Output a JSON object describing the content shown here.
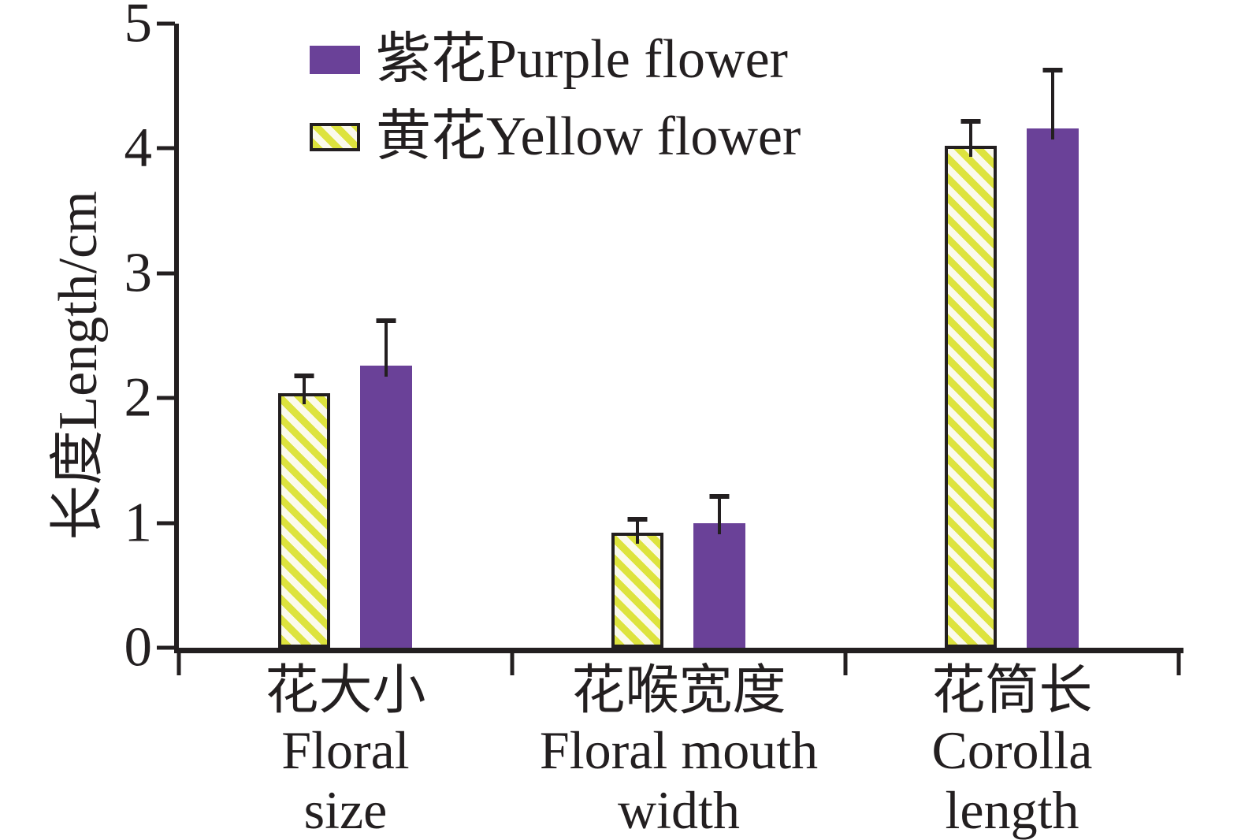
{
  "chart_data": {
    "type": "bar",
    "title": "",
    "xlabel": "",
    "ylabel": "长度Length/cm",
    "ylim": [
      0,
      5
    ],
    "yticks": [
      0,
      1,
      2,
      3,
      4,
      5
    ],
    "grid": false,
    "legend_position": "top-left-inside",
    "categories": [
      {
        "label_zh": "花大小",
        "label_en_lines": [
          "Floral",
          "size"
        ]
      },
      {
        "label_zh": "花喉宽度",
        "label_en_lines": [
          "Floral mouth",
          "width"
        ]
      },
      {
        "label_zh": "花筒长",
        "label_en_lines": [
          "Corolla",
          "length"
        ]
      }
    ],
    "series": [
      {
        "name": "黄花Yellow flower",
        "swatch": "yellow-hatched",
        "values": [
          2.04,
          0.92,
          4.02
        ],
        "errors_plus": [
          0.14,
          0.11,
          0.2
        ]
      },
      {
        "name": "紫花Purple flower",
        "swatch": "purple-solid",
        "values": [
          2.26,
          1.0,
          4.16
        ],
        "errors_plus": [
          0.36,
          0.21,
          0.47
        ]
      }
    ],
    "colors": {
      "purple": "#6a4198",
      "yellow_stripe": "#dde33e",
      "yellow_background": "#fbfaec",
      "axis_and_text": "#231f20"
    }
  }
}
